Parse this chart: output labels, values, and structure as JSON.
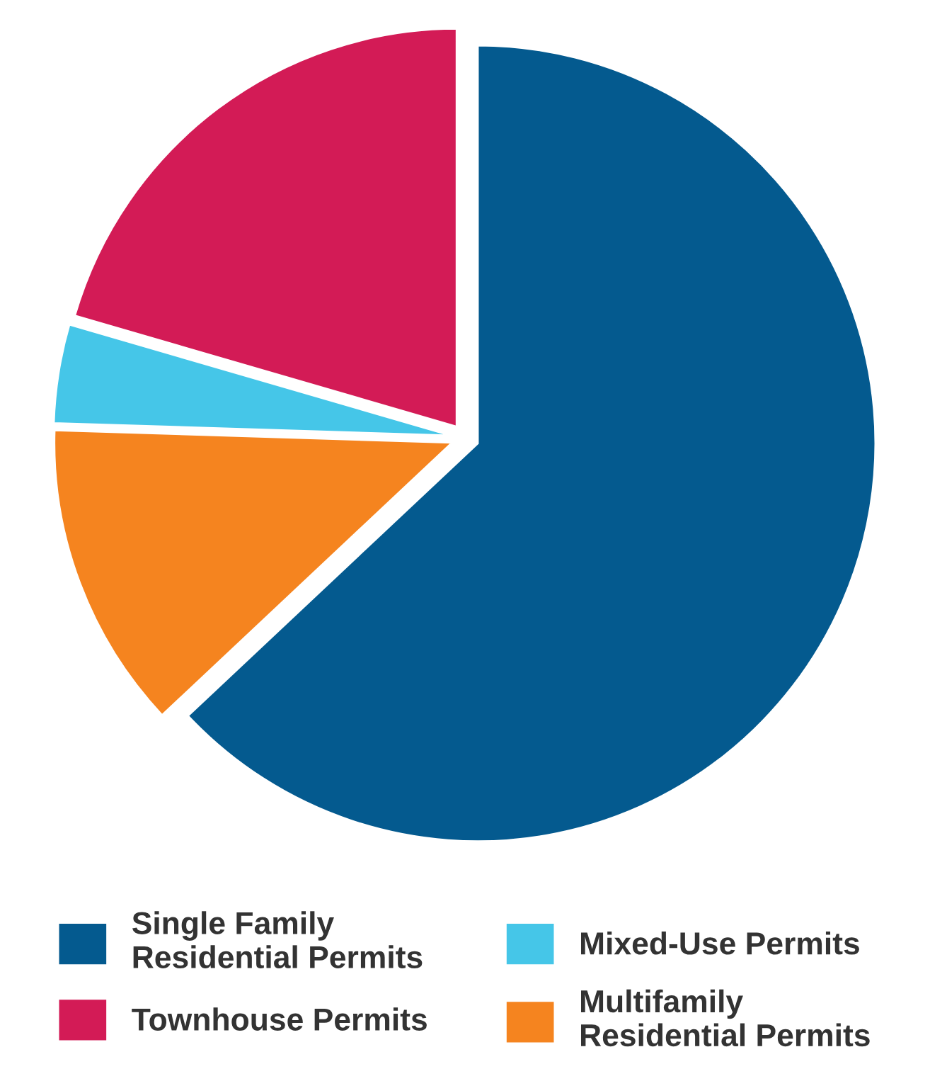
{
  "chart_data": {
    "type": "pie",
    "categories": [
      "Single Family\nResidential Permits",
      "Townhouse Permits",
      "Mixed-Use Permits",
      "Multifamily\nResidential Permits"
    ],
    "values": [
      63,
      20.5,
      4,
      12.5
    ],
    "colors": [
      "#045a8f",
      "#d31b56",
      "#45c6e8",
      "#f5841f"
    ],
    "legend": "bottom"
  }
}
